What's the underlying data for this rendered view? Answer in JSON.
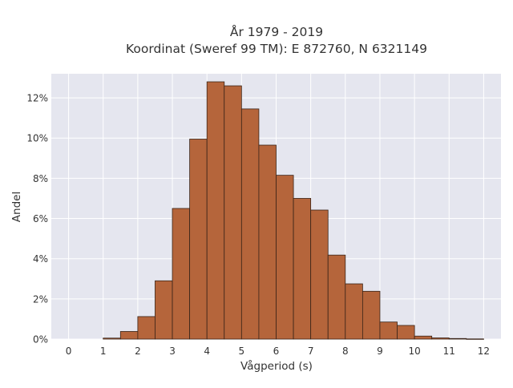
{
  "chart_data": {
    "type": "bar",
    "title": "År 1979 - 2019",
    "subtitle": "Koordinat (Sweref 99 TM): E 872760, N 6321149",
    "xlabel": "Vågperiod (s)",
    "ylabel": "Andel",
    "x_ticks": [
      "0",
      "1",
      "2",
      "3",
      "4",
      "5",
      "6",
      "7",
      "8",
      "9",
      "10",
      "11",
      "12"
    ],
    "y_ticks": [
      "0%",
      "2%",
      "4%",
      "6%",
      "8%",
      "10%",
      "12%"
    ],
    "xlim": [
      -0.5,
      12.5
    ],
    "ylim": [
      0,
      13.2
    ],
    "bin_width": 0.5,
    "bin_starts": [
      1.0,
      1.5,
      2.0,
      2.5,
      3.0,
      3.5,
      4.0,
      4.5,
      5.0,
      5.5,
      6.0,
      6.5,
      7.0,
      7.5,
      8.0,
      8.5,
      9.0,
      9.5,
      10.0,
      10.5,
      11.0,
      11.5
    ],
    "values": [
      0.05,
      0.38,
      1.12,
      2.9,
      6.5,
      9.95,
      12.8,
      12.6,
      11.45,
      9.65,
      8.15,
      7.0,
      6.42,
      4.18,
      2.75,
      2.38,
      0.85,
      0.68,
      0.15,
      0.06,
      0.03,
      0.01
    ],
    "unit": "%",
    "grid": true,
    "colors": {
      "bar_fill": "#b5653b",
      "bar_stroke": "#3a2418",
      "plot_bg": "#e5e6ef",
      "grid": "#ffffff"
    }
  }
}
